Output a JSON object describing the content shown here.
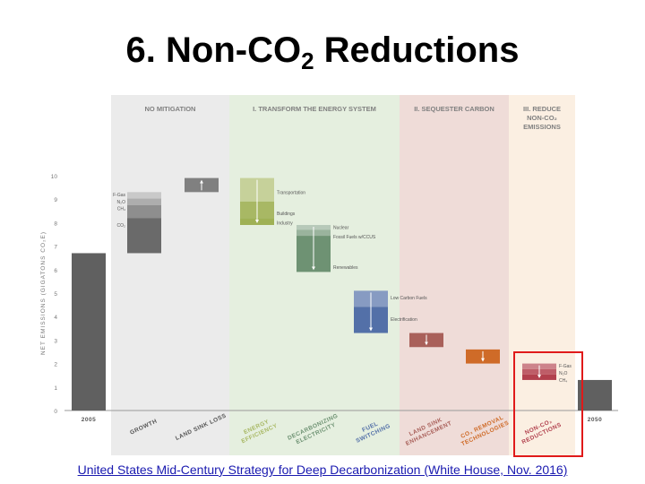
{
  "slide": {
    "title_main": "6. Non-CO",
    "title_sub": "2",
    "title_end": " Reductions",
    "source": "United States Mid-Century Strategy for Deep Decarbonization (White House, Nov. 2016)"
  },
  "colors": {
    "no_mitigation": "#ebebeb",
    "transform": "#e5efdf",
    "sequester": "#efdcd8",
    "reduce": "#fbefe2",
    "highlight": "#e01a1a",
    "gray_bar": "#606060",
    "green": "#6e9273",
    "blue": "#5370a8",
    "brown": "#a9605a",
    "orange": "#cf6b28",
    "red": "#b2404d"
  },
  "chart_data": {
    "type": "waterfall",
    "ylabel": "NET EMISSIONS (GIGATONS CO₂E)",
    "ylim": [
      0,
      10
    ],
    "yticks": [
      0,
      1,
      2,
      3,
      4,
      5,
      6,
      7,
      8,
      9,
      10
    ],
    "panels": [
      {
        "id": "no-mitigation",
        "label_lines": [
          "NO MITIGATION"
        ]
      },
      {
        "id": "transform",
        "label_lines": [
          "I. TRANSFORM THE ENERGY SYSTEM"
        ]
      },
      {
        "id": "sequester",
        "label_lines": [
          "II. SEQUESTER CARBON"
        ]
      },
      {
        "id": "reduce",
        "label_lines": [
          "III. REDUCE",
          "NON-CO₂",
          "EMISSIONS"
        ]
      }
    ],
    "bars": [
      {
        "id": "2005",
        "label_lines": [
          "2005"
        ],
        "from": 0,
        "to": 6.7,
        "color": "#606060",
        "pos": 0
      },
      {
        "id": "growth",
        "label_lines": [
          "GROWTH"
        ],
        "from": 6.7,
        "to": 9.3,
        "color": "#606060",
        "pos": 1,
        "segments": [
          {
            "from": 8.2,
            "to": 9.3,
            "name": "non-co2"
          },
          {
            "from": 6.7,
            "to": 8.2,
            "name": "co2"
          }
        ]
      },
      {
        "id": "land-sink-loss",
        "label_lines": [
          "LAND SINK LOSS"
        ],
        "from": 9.3,
        "to": 9.9,
        "color": "#808080",
        "pos": 2
      },
      {
        "id": "energy-efficiency",
        "label_lines": [
          "ENERGY",
          "EFFICIENCY"
        ],
        "from": 9.9,
        "to": 7.9,
        "color": "#a8b864",
        "pos": 3
      },
      {
        "id": "decarbonizing-electricity",
        "label_lines": [
          "DECARBONIZING",
          "ELECTRICITY"
        ],
        "from": 7.9,
        "to": 5.9,
        "color": "#6e9273",
        "pos": 4
      },
      {
        "id": "fuel-switching",
        "label_lines": [
          "FUEL",
          "SWITCHING"
        ],
        "from": 5.1,
        "to": 3.3,
        "color": "#5370a8",
        "pos": 5
      },
      {
        "id": "land-sink-enhancement",
        "label_lines": [
          "LAND SINK",
          "ENHANCEMENT"
        ],
        "from": 3.3,
        "to": 2.7,
        "color": "#a9605a",
        "pos": 6
      },
      {
        "id": "co2-removal-technologies",
        "label_lines": [
          "CO₂ REMOVAL",
          "TECHNOLOGIES"
        ],
        "from": 2.6,
        "to": 2.0,
        "color": "#cf6b28",
        "pos": 7
      },
      {
        "id": "non-co2-reductions",
        "label_lines": [
          "NON-CO₂",
          "REDUCTIONS"
        ],
        "from": 2.0,
        "to": 1.3,
        "color": "#b2404d",
        "pos": 8
      },
      {
        "id": "2050",
        "label_lines": [
          "2050"
        ],
        "from": 0,
        "to": 1.3,
        "color": "#606060",
        "pos": 9
      }
    ],
    "annotations": [
      {
        "text": "F-Gas",
        "bar": "growth",
        "y": 9.2,
        "side": "left"
      },
      {
        "text": "N₂O",
        "bar": "growth",
        "y": 8.9,
        "side": "left"
      },
      {
        "text": "CH₄",
        "bar": "growth",
        "y": 8.6,
        "side": "left"
      },
      {
        "text": "CO₂",
        "bar": "growth",
        "y": 7.9,
        "side": "left"
      },
      {
        "text": "Transportation",
        "bar": "energy-efficiency",
        "y": 9.3,
        "side": "right"
      },
      {
        "text": "Buildings",
        "bar": "energy-efficiency",
        "y": 8.4,
        "side": "right"
      },
      {
        "text": "Industry",
        "bar": "energy-efficiency",
        "y": 8.0,
        "side": "right"
      },
      {
        "text": "Nuclear",
        "bar": "decarbonizing-electricity",
        "y": 7.8,
        "side": "right"
      },
      {
        "text": "Fossil Fuels w/CCUS",
        "bar": "decarbonizing-electricity",
        "y": 7.4,
        "side": "right"
      },
      {
        "text": "Renewables",
        "bar": "decarbonizing-electricity",
        "y": 6.1,
        "side": "right"
      },
      {
        "text": "Low Carbon Fuels",
        "bar": "fuel-switching",
        "y": 4.8,
        "side": "right"
      },
      {
        "text": "Electrification",
        "bar": "fuel-switching",
        "y": 3.9,
        "side": "right"
      },
      {
        "text": "F-Gas",
        "bar": "non-co2-reductions",
        "y": 1.9,
        "side": "right"
      },
      {
        "text": "N₂O",
        "bar": "non-co2-reductions",
        "y": 1.6,
        "side": "right"
      },
      {
        "text": "CH₄",
        "bar": "non-co2-reductions",
        "y": 1.3,
        "side": "right"
      }
    ]
  }
}
